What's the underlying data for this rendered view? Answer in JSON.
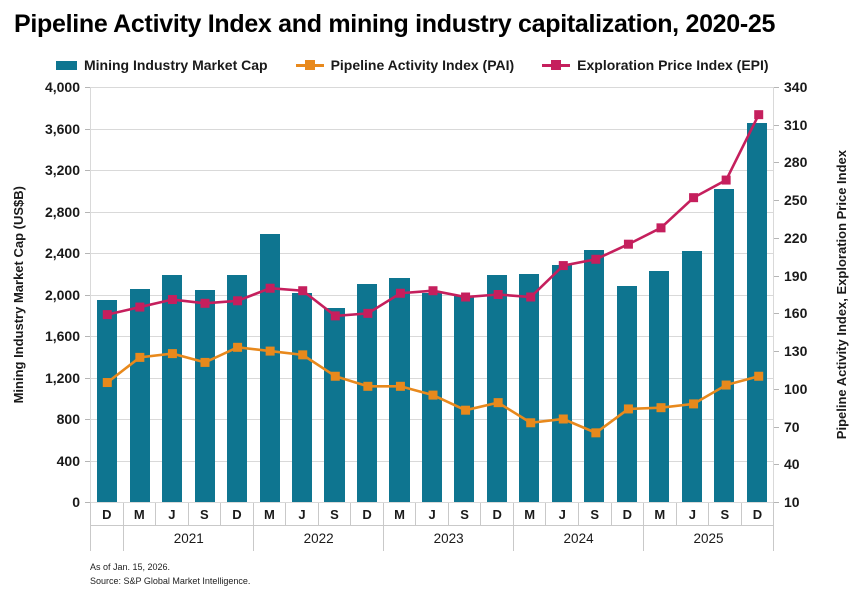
{
  "title": "Pipeline Activity Index and mining industry capitalization, 2020-25",
  "legend": [
    {
      "label": "Mining Industry Market Cap",
      "color": "#0E7590",
      "type": "bar"
    },
    {
      "label": "Pipeline Activity Index (PAI)",
      "color": "#E8891C",
      "type": "line"
    },
    {
      "label": "Exploration Price Index (EPI)",
      "color": "#C51F5D",
      "type": "line"
    }
  ],
  "chart_data": {
    "type": "bar",
    "subtype": "combo-bar-line",
    "categories": [
      "D",
      "M",
      "J",
      "S",
      "D",
      "M",
      "J",
      "S",
      "D",
      "M",
      "J",
      "S",
      "D",
      "M",
      "J",
      "S",
      "D",
      "M",
      "J",
      "S",
      "D"
    ],
    "years": [
      "2021",
      "2022",
      "2023",
      "2024",
      "2025"
    ],
    "series": [
      {
        "name": "Mining Industry Market Cap",
        "type": "bar",
        "axis": "left",
        "values": [
          1950,
          2050,
          2190,
          2040,
          2190,
          2580,
          2010,
          1870,
          2100,
          2160,
          2010,
          1990,
          2190,
          2200,
          2280,
          2430,
          2080,
          2230,
          2420,
          3020,
          3650
        ]
      },
      {
        "name": "Pipeline Activity Index (PAI)",
        "type": "line",
        "axis": "right",
        "values": [
          105,
          125,
          128,
          121,
          133,
          130,
          127,
          110,
          102,
          102,
          95,
          83,
          89,
          73,
          76,
          65,
          84,
          85,
          88,
          103,
          110
        ]
      },
      {
        "name": "Exploration Price Index (EPI)",
        "type": "line",
        "axis": "right",
        "values": [
          159,
          165,
          171,
          168,
          170,
          180,
          178,
          158,
          160,
          176,
          178,
          173,
          175,
          173,
          198,
          203,
          215,
          228,
          252,
          266,
          318
        ]
      }
    ],
    "left_axis": {
      "title": "Mining Industry Market Cap (US$B)",
      "min": 0,
      "max": 4000,
      "step": 400,
      "ticks": [
        "4,000",
        "3,600",
        "3,200",
        "2,800",
        "2,400",
        "2,000",
        "1,600",
        "1,200",
        "800",
        "400",
        "0"
      ]
    },
    "right_axis": {
      "title": "Pipeline Activity Index, Exploration Price Index",
      "min": 10,
      "max": 340,
      "step": 30,
      "ticks": [
        "340",
        "310",
        "280",
        "250",
        "220",
        "190",
        "160",
        "130",
        "100",
        "70",
        "40",
        "10"
      ]
    },
    "grid": "horizontal",
    "legend_position": "top"
  },
  "footer": {
    "as_of": "As of Jan. 15, 2026.",
    "source": "Source: S&P Global Market Intelligence."
  }
}
